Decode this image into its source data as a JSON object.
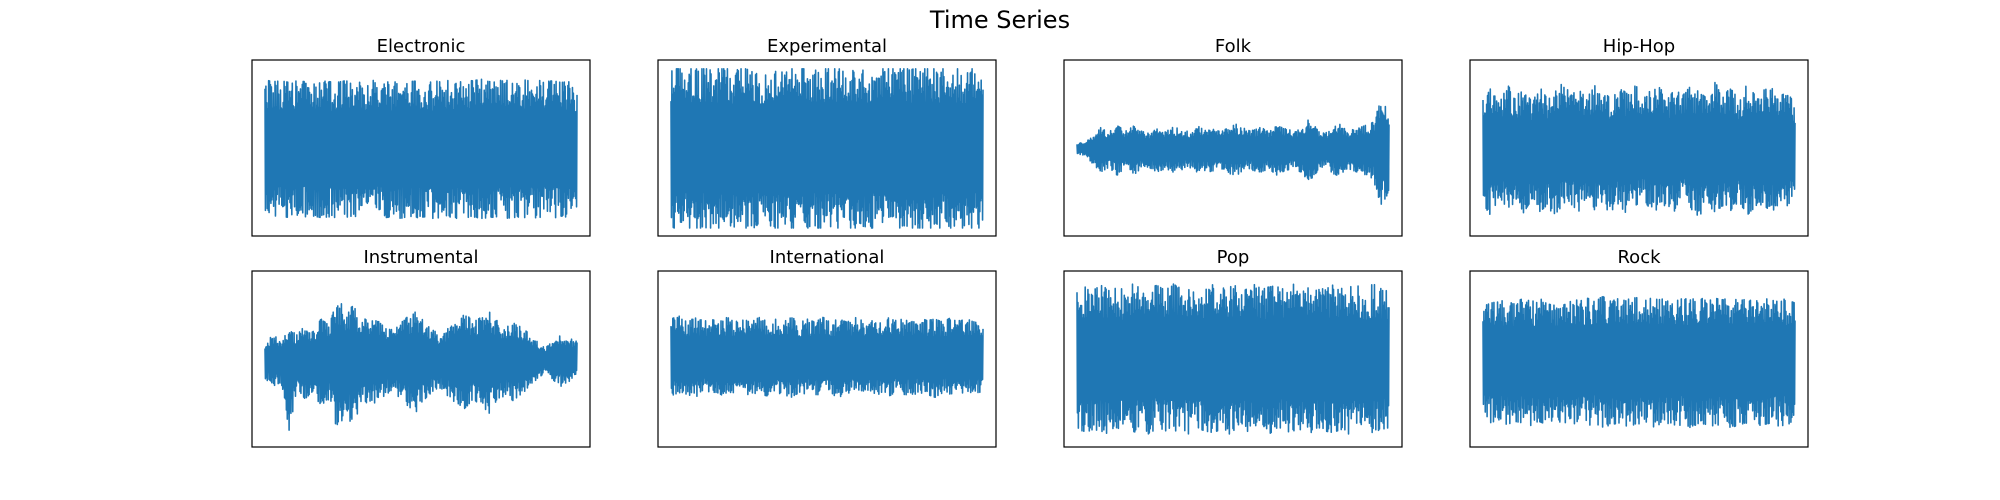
{
  "figure": {
    "title": "Time Series"
  },
  "chart_data": [
    {
      "type": "line",
      "title": "Electronic",
      "xlabel": "",
      "ylabel": "",
      "grid": false,
      "color": "#1f77b4",
      "ylim": [
        -1.1,
        1.1
      ],
      "envelope": [
        [
          0.85,
          -0.88
        ],
        [
          0.83,
          -0.86
        ],
        [
          0.84,
          -0.85
        ],
        [
          0.82,
          -0.87
        ],
        [
          0.84,
          -0.88
        ],
        [
          0.83,
          -0.86
        ],
        [
          0.82,
          -0.85
        ],
        [
          0.84,
          -0.87
        ],
        [
          0.83,
          -0.86
        ],
        [
          0.82,
          -0.88
        ],
        [
          0.84,
          -0.86
        ],
        [
          0.83,
          -0.87
        ],
        [
          0.82,
          -0.85
        ],
        [
          0.85,
          -0.88
        ],
        [
          0.84,
          -0.86
        ],
        [
          0.83,
          -0.87
        ],
        [
          0.82,
          -0.86
        ],
        [
          0.84,
          -0.88
        ],
        [
          0.83,
          -0.85
        ],
        [
          0.84,
          -0.87
        ],
        [
          0.82,
          -0.86
        ],
        [
          0.83,
          -0.88
        ],
        [
          0.86,
          -0.87
        ],
        [
          0.84,
          -0.86
        ],
        [
          0.83,
          -0.88
        ],
        [
          0.85,
          -0.87
        ],
        [
          0.84,
          -0.86
        ],
        [
          0.86,
          -0.88
        ],
        [
          0.83,
          -0.87
        ],
        [
          0.84,
          -0.86
        ],
        [
          0.85,
          -0.88
        ],
        [
          0.83,
          -0.87
        ],
        [
          0.86,
          -0.86
        ],
        [
          0.84,
          -0.88
        ],
        [
          0.85,
          -0.87
        ],
        [
          0.83,
          -0.86
        ],
        [
          0.84,
          -0.88
        ],
        [
          0.82,
          -0.85
        ],
        [
          0.83,
          -0.87
        ],
        [
          0.81,
          -0.86
        ]
      ]
    },
    {
      "type": "line",
      "title": "Experimental",
      "xlabel": "",
      "ylabel": "",
      "grid": false,
      "color": "#1f77b4",
      "ylim": [
        -1.1,
        1.1
      ],
      "envelope": [
        [
          0.99,
          -1.0
        ],
        [
          0.99,
          -1.0
        ],
        [
          0.99,
          -1.0
        ],
        [
          0.99,
          -1.0
        ],
        [
          0.99,
          -1.0
        ],
        [
          0.99,
          -1.0
        ],
        [
          0.99,
          -1.0
        ],
        [
          0.99,
          -1.0
        ],
        [
          0.99,
          -1.0
        ],
        [
          0.99,
          -1.0
        ],
        [
          0.99,
          -1.0
        ],
        [
          0.99,
          -1.0
        ],
        [
          0.99,
          -1.0
        ],
        [
          0.99,
          -1.0
        ],
        [
          0.99,
          -1.0
        ],
        [
          0.99,
          -1.0
        ],
        [
          0.99,
          -1.0
        ],
        [
          0.99,
          -1.0
        ],
        [
          0.99,
          -1.0
        ],
        [
          0.99,
          -1.0
        ],
        [
          0.99,
          -1.0
        ],
        [
          0.99,
          -1.0
        ],
        [
          0.99,
          -1.0
        ],
        [
          0.99,
          -1.0
        ],
        [
          0.99,
          -1.0
        ],
        [
          0.99,
          -1.0
        ],
        [
          0.99,
          -1.0
        ],
        [
          0.99,
          -1.0
        ],
        [
          0.99,
          -1.0
        ],
        [
          0.99,
          -1.0
        ],
        [
          0.99,
          -1.0
        ],
        [
          0.99,
          -1.0
        ],
        [
          0.99,
          -1.0
        ],
        [
          0.99,
          -1.0
        ],
        [
          0.99,
          -1.0
        ],
        [
          0.99,
          -1.0
        ],
        [
          0.99,
          -1.0
        ],
        [
          0.99,
          -1.0
        ],
        [
          0.99,
          -1.0
        ],
        [
          0.99,
          -1.0
        ]
      ]
    },
    {
      "type": "line",
      "title": "Folk",
      "xlabel": "",
      "ylabel": "",
      "grid": false,
      "color": "#1f77b4",
      "ylim": [
        -1.1,
        1.1
      ],
      "envelope": [
        [
          0.06,
          -0.08
        ],
        [
          0.07,
          -0.09
        ],
        [
          0.16,
          -0.2
        ],
        [
          0.26,
          -0.3
        ],
        [
          0.2,
          -0.24
        ],
        [
          0.28,
          -0.34
        ],
        [
          0.22,
          -0.28
        ],
        [
          0.3,
          -0.36
        ],
        [
          0.22,
          -0.26
        ],
        [
          0.18,
          -0.24
        ],
        [
          0.24,
          -0.3
        ],
        [
          0.2,
          -0.26
        ],
        [
          0.26,
          -0.3
        ],
        [
          0.24,
          -0.28
        ],
        [
          0.2,
          -0.24
        ],
        [
          0.28,
          -0.3
        ],
        [
          0.22,
          -0.28
        ],
        [
          0.24,
          -0.3
        ],
        [
          0.2,
          -0.26
        ],
        [
          0.26,
          -0.32
        ],
        [
          0.3,
          -0.34
        ],
        [
          0.24,
          -0.26
        ],
        [
          0.22,
          -0.28
        ],
        [
          0.26,
          -0.3
        ],
        [
          0.2,
          -0.26
        ],
        [
          0.28,
          -0.34
        ],
        [
          0.24,
          -0.28
        ],
        [
          0.22,
          -0.26
        ],
        [
          0.26,
          -0.3
        ],
        [
          0.36,
          -0.42
        ],
        [
          0.24,
          -0.3
        ],
        [
          0.18,
          -0.22
        ],
        [
          0.26,
          -0.32
        ],
        [
          0.3,
          -0.36
        ],
        [
          0.22,
          -0.26
        ],
        [
          0.24,
          -0.3
        ],
        [
          0.28,
          -0.34
        ],
        [
          0.32,
          -0.38
        ],
        [
          0.6,
          -0.72
        ],
        [
          0.45,
          -0.55
        ]
      ]
    },
    {
      "type": "line",
      "title": "Hip-Hop",
      "xlabel": "",
      "ylabel": "",
      "grid": false,
      "color": "#1f77b4",
      "ylim": [
        -1.1,
        1.1
      ],
      "envelope": [
        [
          0.6,
          -0.7
        ],
        [
          0.75,
          -0.85
        ],
        [
          0.55,
          -0.6
        ],
        [
          0.8,
          -0.75
        ],
        [
          0.65,
          -0.7
        ],
        [
          0.72,
          -0.82
        ],
        [
          0.6,
          -0.66
        ],
        [
          0.78,
          -0.8
        ],
        [
          0.62,
          -0.72
        ],
        [
          0.7,
          -0.86
        ],
        [
          0.82,
          -0.74
        ],
        [
          0.66,
          -0.7
        ],
        [
          0.74,
          -0.8
        ],
        [
          0.6,
          -0.64
        ],
        [
          0.84,
          -0.78
        ],
        [
          0.7,
          -0.74
        ],
        [
          0.62,
          -0.8
        ],
        [
          0.76,
          -0.7
        ],
        [
          0.68,
          -0.84
        ],
        [
          0.8,
          -0.72
        ],
        [
          0.64,
          -0.66
        ],
        [
          0.72,
          -0.8
        ],
        [
          0.86,
          -0.76
        ],
        [
          0.6,
          -0.7
        ],
        [
          0.74,
          -0.82
        ],
        [
          0.66,
          -0.64
        ],
        [
          0.78,
          -0.76
        ],
        [
          0.7,
          -0.86
        ],
        [
          0.62,
          -0.7
        ],
        [
          0.82,
          -0.8
        ],
        [
          0.68,
          -0.72
        ],
        [
          0.74,
          -0.78
        ],
        [
          0.6,
          -0.66
        ],
        [
          0.8,
          -0.84
        ],
        [
          0.66,
          -0.74
        ],
        [
          0.72,
          -0.7
        ],
        [
          0.76,
          -0.8
        ],
        [
          0.64,
          -0.72
        ],
        [
          0.7,
          -0.76
        ],
        [
          0.55,
          -0.5
        ]
      ]
    },
    {
      "type": "line",
      "title": "Instrumental",
      "xlabel": "",
      "ylabel": "",
      "grid": false,
      "color": "#1f77b4",
      "ylim": [
        -1.1,
        1.1
      ],
      "envelope": [
        [
          0.2,
          -0.24
        ],
        [
          0.3,
          -0.34
        ],
        [
          0.26,
          -0.3
        ],
        [
          0.38,
          -0.95
        ],
        [
          0.3,
          -0.36
        ],
        [
          0.42,
          -0.5
        ],
        [
          0.34,
          -0.4
        ],
        [
          0.5,
          -0.6
        ],
        [
          0.42,
          -0.5
        ],
        [
          0.8,
          -0.88
        ],
        [
          0.6,
          -0.7
        ],
        [
          0.66,
          -0.82
        ],
        [
          0.54,
          -0.6
        ],
        [
          0.46,
          -0.52
        ],
        [
          0.5,
          -0.56
        ],
        [
          0.4,
          -0.46
        ],
        [
          0.36,
          -0.42
        ],
        [
          0.46,
          -0.5
        ],
        [
          0.54,
          -0.6
        ],
        [
          0.6,
          -0.66
        ],
        [
          0.44,
          -0.5
        ],
        [
          0.36,
          -0.4
        ],
        [
          0.3,
          -0.36
        ],
        [
          0.42,
          -0.48
        ],
        [
          0.5,
          -0.56
        ],
        [
          0.58,
          -0.62
        ],
        [
          0.46,
          -0.5
        ],
        [
          0.52,
          -0.58
        ],
        [
          0.6,
          -0.68
        ],
        [
          0.48,
          -0.56
        ],
        [
          0.38,
          -0.44
        ],
        [
          0.46,
          -0.52
        ],
        [
          0.4,
          -0.44
        ],
        [
          0.32,
          -0.36
        ],
        [
          0.22,
          -0.26
        ],
        [
          0.14,
          -0.16
        ],
        [
          0.22,
          -0.26
        ],
        [
          0.3,
          -0.34
        ],
        [
          0.26,
          -0.3
        ],
        [
          0.22,
          -0.24
        ]
      ]
    },
    {
      "type": "line",
      "title": "International",
      "xlabel": "",
      "ylabel": "",
      "grid": false,
      "color": "#1f77b4",
      "ylim": [
        -1.1,
        1.1
      ],
      "envelope": [
        [
          0.5,
          -0.46
        ],
        [
          0.54,
          -0.42
        ],
        [
          0.46,
          -0.44
        ],
        [
          0.52,
          -0.48
        ],
        [
          0.48,
          -0.42
        ],
        [
          0.5,
          -0.44
        ],
        [
          0.46,
          -0.46
        ],
        [
          0.52,
          -0.42
        ],
        [
          0.48,
          -0.44
        ],
        [
          0.5,
          -0.48
        ],
        [
          0.46,
          -0.42
        ],
        [
          0.52,
          -0.44
        ],
        [
          0.48,
          -0.46
        ],
        [
          0.5,
          -0.42
        ],
        [
          0.46,
          -0.44
        ],
        [
          0.52,
          -0.48
        ],
        [
          0.48,
          -0.42
        ],
        [
          0.5,
          -0.44
        ],
        [
          0.46,
          -0.46
        ],
        [
          0.52,
          -0.42
        ],
        [
          0.48,
          -0.44
        ],
        [
          0.5,
          -0.48
        ],
        [
          0.46,
          -0.42
        ],
        [
          0.52,
          -0.44
        ],
        [
          0.48,
          -0.46
        ],
        [
          0.5,
          -0.42
        ],
        [
          0.46,
          -0.44
        ],
        [
          0.52,
          -0.48
        ],
        [
          0.48,
          -0.42
        ],
        [
          0.5,
          -0.44
        ],
        [
          0.46,
          -0.46
        ],
        [
          0.52,
          -0.42
        ],
        [
          0.48,
          -0.44
        ],
        [
          0.5,
          -0.48
        ],
        [
          0.46,
          -0.42
        ],
        [
          0.52,
          -0.44
        ],
        [
          0.48,
          -0.46
        ],
        [
          0.5,
          -0.42
        ],
        [
          0.46,
          -0.44
        ],
        [
          0.44,
          -0.4
        ]
      ]
    },
    {
      "type": "line",
      "title": "Pop",
      "xlabel": "",
      "ylabel": "",
      "grid": false,
      "color": "#1f77b4",
      "ylim": [
        -1.1,
        1.1
      ],
      "envelope": [
        [
          0.84,
          -0.86
        ],
        [
          0.9,
          -0.92
        ],
        [
          0.86,
          -0.88
        ],
        [
          0.92,
          -0.9
        ],
        [
          0.88,
          -0.94
        ],
        [
          0.9,
          -0.86
        ],
        [
          0.86,
          -0.9
        ],
        [
          0.94,
          -0.92
        ],
        [
          0.88,
          -0.88
        ],
        [
          0.9,
          -0.94
        ],
        [
          0.92,
          -0.86
        ],
        [
          0.86,
          -0.9
        ],
        [
          0.94,
          -0.92
        ],
        [
          0.88,
          -0.88
        ],
        [
          0.9,
          -0.94
        ],
        [
          0.92,
          -0.86
        ],
        [
          0.86,
          -0.9
        ],
        [
          0.94,
          -0.92
        ],
        [
          0.88,
          -0.88
        ],
        [
          0.9,
          -0.94
        ],
        [
          0.92,
          -0.86
        ],
        [
          0.86,
          -0.9
        ],
        [
          0.94,
          -0.92
        ],
        [
          0.88,
          -0.88
        ],
        [
          0.9,
          -0.94
        ],
        [
          0.92,
          -0.86
        ],
        [
          0.86,
          -0.9
        ],
        [
          0.94,
          -0.92
        ],
        [
          0.88,
          -0.88
        ],
        [
          0.9,
          -0.94
        ],
        [
          0.92,
          -0.86
        ],
        [
          0.86,
          -0.9
        ],
        [
          0.94,
          -0.92
        ],
        [
          0.88,
          -0.88
        ],
        [
          0.9,
          -0.94
        ],
        [
          0.92,
          -0.86
        ],
        [
          0.86,
          -0.9
        ],
        [
          0.94,
          -0.92
        ],
        [
          0.88,
          -0.88
        ],
        [
          0.84,
          -0.86
        ]
      ]
    },
    {
      "type": "line",
      "title": "Rock",
      "xlabel": "",
      "ylabel": "",
      "grid": false,
      "color": "#1f77b4",
      "ylim": [
        -1.1,
        1.1
      ],
      "envelope": [
        [
          0.66,
          -0.74
        ],
        [
          0.7,
          -0.8
        ],
        [
          0.72,
          -0.76
        ],
        [
          0.74,
          -0.82
        ],
        [
          0.7,
          -0.78
        ],
        [
          0.76,
          -0.8
        ],
        [
          0.72,
          -0.84
        ],
        [
          0.74,
          -0.78
        ],
        [
          0.76,
          -0.82
        ],
        [
          0.72,
          -0.8
        ],
        [
          0.74,
          -0.86
        ],
        [
          0.78,
          -0.8
        ],
        [
          0.72,
          -0.82
        ],
        [
          0.76,
          -0.84
        ],
        [
          0.74,
          -0.8
        ],
        [
          0.78,
          -0.86
        ],
        [
          0.72,
          -0.82
        ],
        [
          0.76,
          -0.8
        ],
        [
          0.74,
          -0.84
        ],
        [
          0.78,
          -0.82
        ],
        [
          0.72,
          -0.8
        ],
        [
          0.76,
          -0.86
        ],
        [
          0.74,
          -0.82
        ],
        [
          0.78,
          -0.8
        ],
        [
          0.72,
          -0.84
        ],
        [
          0.76,
          -0.82
        ],
        [
          0.74,
          -0.86
        ],
        [
          0.78,
          -0.8
        ],
        [
          0.72,
          -0.82
        ],
        [
          0.76,
          -0.84
        ],
        [
          0.74,
          -0.8
        ],
        [
          0.78,
          -0.86
        ],
        [
          0.72,
          -0.82
        ],
        [
          0.76,
          -0.8
        ],
        [
          0.74,
          -0.84
        ],
        [
          0.78,
          -0.82
        ],
        [
          0.72,
          -0.8
        ],
        [
          0.76,
          -0.84
        ],
        [
          0.74,
          -0.82
        ],
        [
          0.7,
          -0.78
        ]
      ]
    }
  ]
}
